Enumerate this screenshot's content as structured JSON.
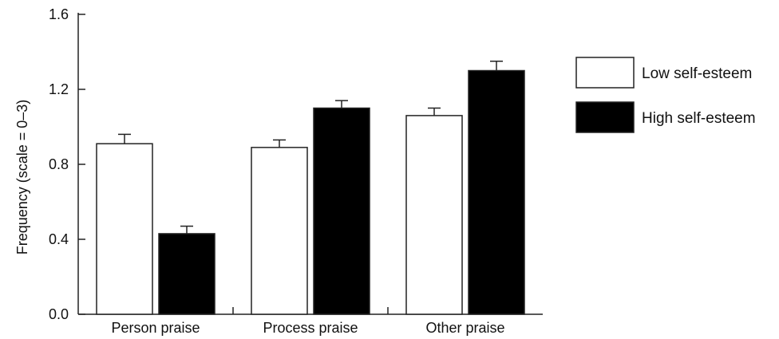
{
  "chart_data": {
    "type": "bar",
    "title": "",
    "xlabel": "",
    "ylabel": "Frequency (scale = 0–3)",
    "ylim": [
      0,
      1.6
    ],
    "yticks": [
      "0.0",
      "0.4",
      "0.8",
      "1.2",
      "1.6"
    ],
    "categories": [
      "Person praise",
      "Process praise",
      "Other praise"
    ],
    "series": [
      {
        "name": "Low self-esteem",
        "values": [
          0.91,
          0.89,
          1.06
        ],
        "errors": [
          0.05,
          0.04,
          0.04
        ],
        "color": "#ffffff"
      },
      {
        "name": "High self-esteem",
        "values": [
          0.43,
          1.1,
          1.3
        ],
        "errors": [
          0.04,
          0.04,
          0.05
        ],
        "color": "#000000"
      }
    ],
    "grid": false,
    "legend_position": "right"
  }
}
